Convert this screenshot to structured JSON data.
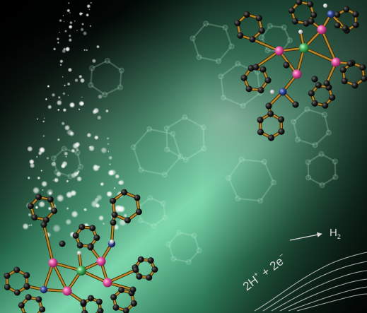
{
  "artwork": {
    "subject": "molecular-catalyst-illustration",
    "equation": {
      "reactant_1": "2H",
      "reactant_1_charge": "+",
      "plus_sign": "+",
      "reactant_2": "2e",
      "reactant_2_charge": "−",
      "product": "H",
      "product_subscript": "2"
    }
  },
  "colors": {
    "background_glow": "#7fdcb1",
    "background_dark": "#020a06",
    "bond": "#b8862a",
    "carbon_atom": "#111111",
    "phosphorus_atom": "#e2509f",
    "nickel_atom": "#3fae5b",
    "nitrogen_atom": "#2c3f8a",
    "hydrogen_atom": "#e8e8e8",
    "sparkle": "#ffffff",
    "equation_text": "#d9d9d9"
  },
  "icons": [
    "sparkle-particles",
    "ghost-molecule-rings",
    "voltammogram-curves",
    "arrow-icon"
  ]
}
